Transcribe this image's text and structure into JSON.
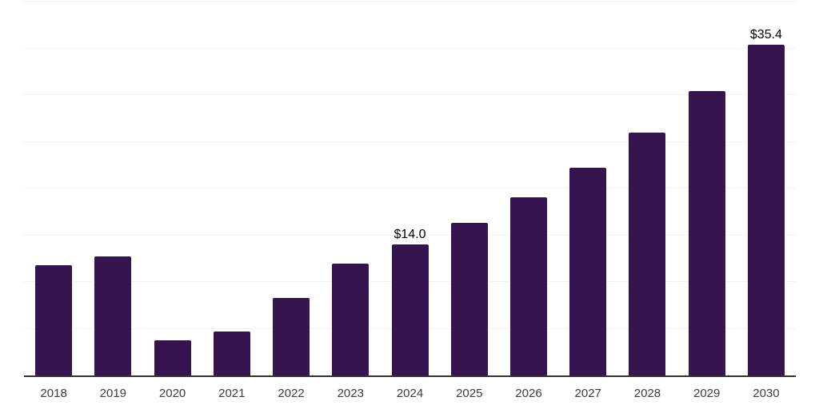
{
  "chart_data": {
    "type": "bar",
    "title": "",
    "xlabel": "",
    "ylabel": "",
    "categories": [
      "2018",
      "2019",
      "2020",
      "2021",
      "2022",
      "2023",
      "2024",
      "2025",
      "2026",
      "2027",
      "2028",
      "2029",
      "2030"
    ],
    "values": [
      11.8,
      12.7,
      3.8,
      4.7,
      8.3,
      12.0,
      14.0,
      16.3,
      19.1,
      22.2,
      26.0,
      30.4,
      35.4
    ],
    "data_labels": {
      "2024": "$14.0",
      "2030": "$35.4"
    },
    "ylim": [
      0,
      40
    ],
    "gridline_step": 5,
    "grid": "horizontal-only",
    "legend_position": "none",
    "colors": {
      "bar": "#361450",
      "gridline": "#f1f1f1",
      "axis_line": "#333333",
      "tick_label": "#3d3d3d",
      "data_label": "#000000",
      "background": "#ffffff"
    }
  }
}
